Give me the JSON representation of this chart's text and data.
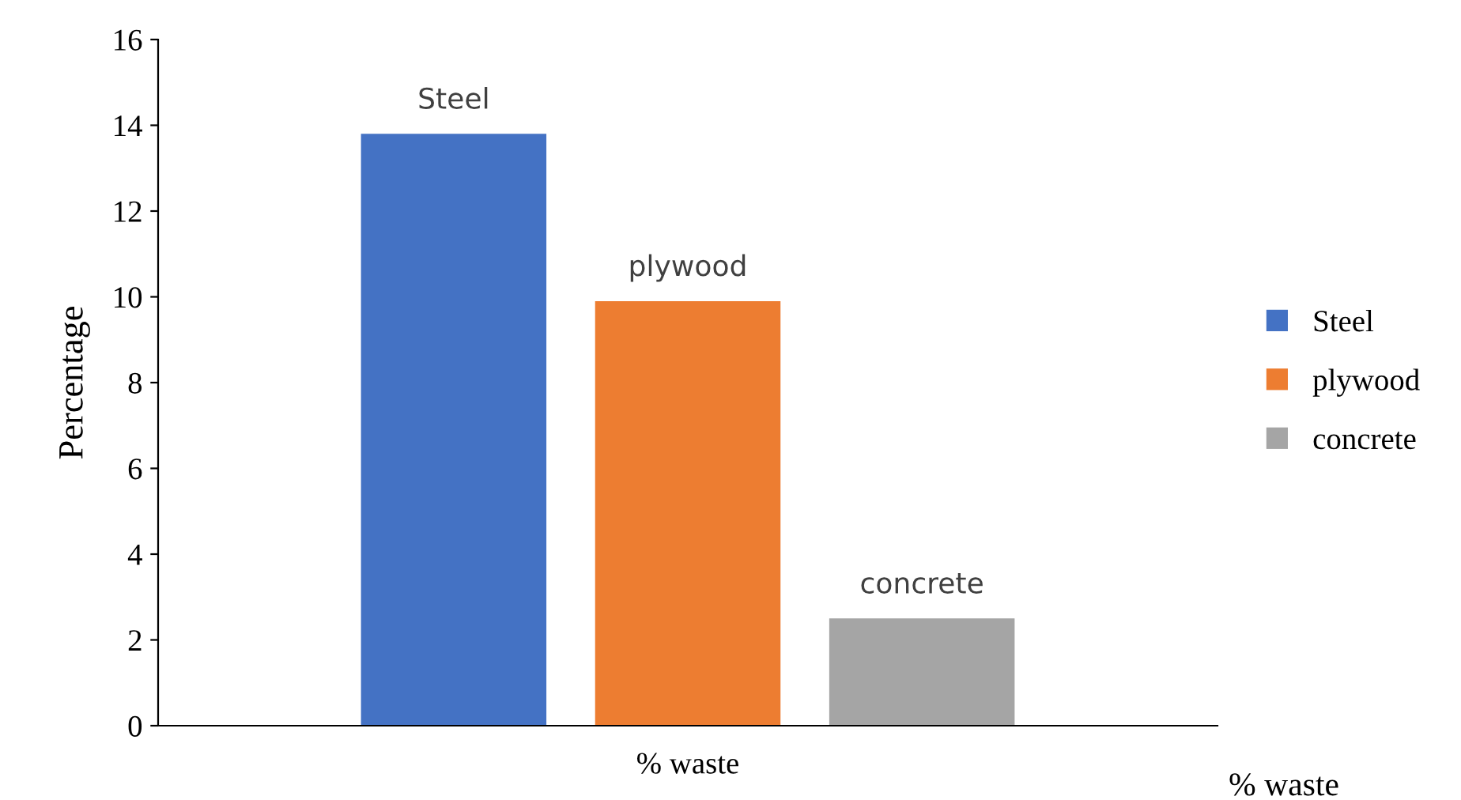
{
  "chart_data": {
    "type": "bar",
    "categories": [
      "% waste"
    ],
    "ylabel": "Percentage",
    "xlabel": "% waste",
    "ylim": [
      0,
      16
    ],
    "yticks": [
      0,
      2,
      4,
      6,
      8,
      10,
      12,
      14,
      16
    ],
    "grid": false,
    "legend": "right",
    "series": [
      {
        "name": "Steel",
        "color": "#4472c4",
        "values": [
          13.8
        ]
      },
      {
        "name": "plywood",
        "color": "#ed7d31",
        "values": [
          9.9
        ]
      },
      {
        "name": "concrete",
        "color": "#a5a5a5",
        "values": [
          2.5
        ]
      }
    ]
  }
}
